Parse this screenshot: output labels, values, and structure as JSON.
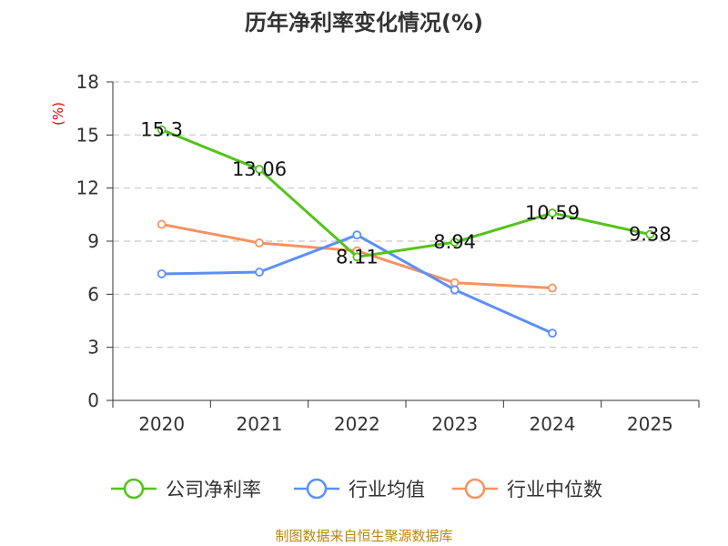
{
  "chart_data": {
    "type": "line",
    "title": "历年净利率变化情况(%)",
    "ylabel": "(%)",
    "xlabel": "",
    "categories": [
      "2020",
      "2021",
      "2022",
      "2023",
      "2024",
      "2025"
    ],
    "ylim": [
      0,
      18
    ],
    "yticks": [
      0,
      3,
      6,
      9,
      12,
      15,
      18
    ],
    "grid": true,
    "legend_position": "bottom",
    "series": [
      {
        "name": "公司净利率",
        "color": "#52c41a",
        "values": [
          15.3,
          13.06,
          8.11,
          8.94,
          10.59,
          9.38
        ],
        "labels": [
          "15.3",
          "13.06",
          "8.11",
          "8.94",
          "10.59",
          "9.38"
        ]
      },
      {
        "name": "行业均值",
        "color": "#5b8ff9",
        "values": [
          7.15,
          7.25,
          9.35,
          6.25,
          3.8,
          null
        ]
      },
      {
        "name": "行业中位数",
        "color": "#f59361",
        "values": [
          9.95,
          8.9,
          8.45,
          6.65,
          6.35,
          null
        ]
      }
    ],
    "source": "制图数据来自恒生聚源数据库"
  }
}
